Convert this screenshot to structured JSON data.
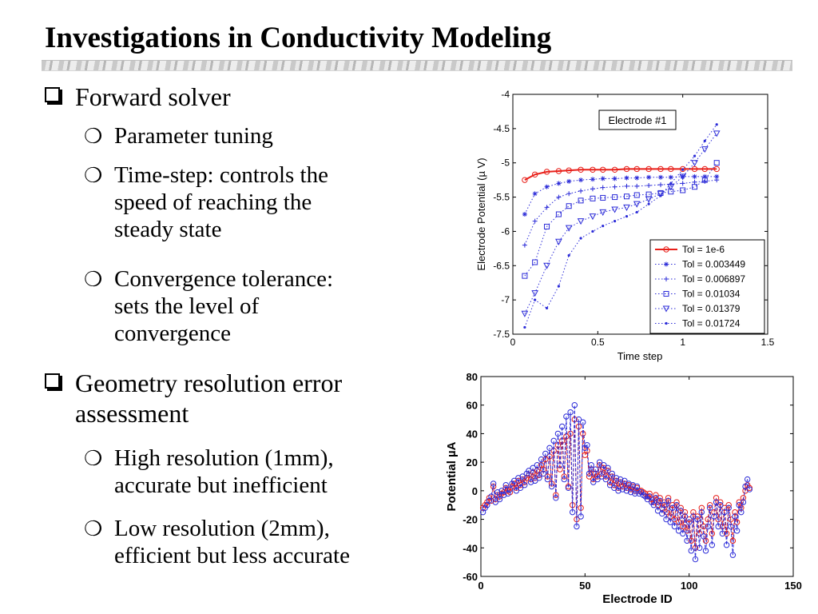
{
  "slide": {
    "title": "Investigations in Conductivity Modeling",
    "bullets": [
      {
        "text": [
          "Forward solver"
        ]
      },
      {
        "text": [
          "Parameter tuning"
        ]
      },
      {
        "text": [
          "Time-step: controls the",
          "speed of reaching the",
          "steady state"
        ]
      },
      {
        "text": [
          "Convergence tolerance:",
          "sets the level of",
          "convergence"
        ]
      },
      {
        "text": [
          "Geometry resolution error",
          "assessment"
        ]
      },
      {
        "text": [
          "High resolution (1mm),",
          "accurate but inefficient"
        ]
      },
      {
        "text": [
          "Low resolution (2mm),",
          "efficient but less accurate"
        ]
      }
    ]
  },
  "chart_data": [
    {
      "type": "line",
      "xlabel": "Time step",
      "ylabel": "Electrode Potential (µ V)",
      "xlim": [
        0,
        1.5
      ],
      "ylim": [
        -7.5,
        -4
      ],
      "xticks": [
        "0",
        "0.5",
        "1",
        "1.5"
      ],
      "yticks": [
        "-4",
        "-4.5",
        "-5",
        "-5.5",
        "-6",
        "-6.5",
        "-7",
        "-7.5"
      ],
      "annotation": "Electrode #1",
      "legend_position": "bottom-right",
      "colors": {
        "red": "#e8201a",
        "blue": "#2b2bd8"
      },
      "series": [
        {
          "name": "Tol = 1e-6",
          "marker": "circle",
          "x": [
            0.07,
            0.13,
            0.2,
            0.27,
            0.33,
            0.4,
            0.47,
            0.53,
            0.6,
            0.67,
            0.73,
            0.8,
            0.87,
            0.93,
            1.0,
            1.07,
            1.13,
            1.2
          ],
          "y": [
            -5.25,
            -5.17,
            -5.13,
            -5.12,
            -5.11,
            -5.1,
            -5.1,
            -5.1,
            -5.1,
            -5.09,
            -5.09,
            -5.09,
            -5.09,
            -5.09,
            -5.09,
            -5.09,
            -5.09,
            -5.09
          ]
        },
        {
          "name": "Tol = 0.003449",
          "marker": "star",
          "x": [
            0.07,
            0.13,
            0.2,
            0.27,
            0.33,
            0.4,
            0.47,
            0.53,
            0.6,
            0.67,
            0.73,
            0.8,
            0.87,
            0.93,
            1.0,
            1.07,
            1.13,
            1.2
          ],
          "y": [
            -5.75,
            -5.45,
            -5.35,
            -5.3,
            -5.27,
            -5.25,
            -5.24,
            -5.23,
            -5.23,
            -5.22,
            -5.22,
            -5.21,
            -5.21,
            -5.21,
            -5.2,
            -5.2,
            -5.2,
            -5.2
          ]
        },
        {
          "name": "Tol = 0.006897",
          "marker": "plus",
          "x": [
            0.07,
            0.13,
            0.2,
            0.27,
            0.33,
            0.4,
            0.47,
            0.53,
            0.6,
            0.67,
            0.73,
            0.8,
            0.87,
            0.93,
            1.0,
            1.07,
            1.13,
            1.2
          ],
          "y": [
            -6.2,
            -5.85,
            -5.65,
            -5.5,
            -5.45,
            -5.41,
            -5.38,
            -5.36,
            -5.35,
            -5.34,
            -5.34,
            -5.33,
            -5.32,
            -5.31,
            -5.3,
            -5.28,
            -5.27,
            -5.25
          ]
        },
        {
          "name": "Tol = 0.01034",
          "marker": "square",
          "x": [
            0.07,
            0.13,
            0.2,
            0.27,
            0.33,
            0.4,
            0.47,
            0.53,
            0.6,
            0.67,
            0.73,
            0.8,
            0.87,
            0.93,
            1.0,
            1.07,
            1.13,
            1.2
          ],
          "y": [
            -6.65,
            -6.45,
            -5.93,
            -5.75,
            -5.63,
            -5.55,
            -5.52,
            -5.51,
            -5.5,
            -5.49,
            -5.47,
            -5.46,
            -5.44,
            -5.42,
            -5.4,
            -5.35,
            -5.25,
            -5.0
          ]
        },
        {
          "name": "Tol = 0.01379",
          "marker": "triangle-down",
          "x": [
            0.07,
            0.13,
            0.2,
            0.27,
            0.33,
            0.4,
            0.47,
            0.53,
            0.6,
            0.67,
            0.73,
            0.8,
            0.87,
            0.93,
            1.0,
            1.07,
            1.13,
            1.2
          ],
          "y": [
            -7.2,
            -6.9,
            -6.5,
            -6.15,
            -5.95,
            -5.85,
            -5.78,
            -5.72,
            -5.68,
            -5.65,
            -5.6,
            -5.53,
            -5.45,
            -5.35,
            -5.2,
            -5.0,
            -4.8,
            -4.57
          ]
        },
        {
          "name": "Tol = 0.01724",
          "marker": "dot",
          "x": [
            0.07,
            0.13,
            0.2,
            0.27,
            0.33,
            0.4,
            0.47,
            0.53,
            0.6,
            0.67,
            0.73,
            0.8,
            0.87,
            0.93,
            1.0,
            1.07,
            1.13,
            1.2
          ],
          "y": [
            -7.4,
            -7.0,
            -7.12,
            -6.8,
            -6.35,
            -6.1,
            -6.0,
            -5.92,
            -5.85,
            -5.78,
            -5.72,
            -5.6,
            -5.48,
            -5.3,
            -5.1,
            -4.9,
            -4.68,
            -4.44
          ]
        }
      ]
    },
    {
      "type": "line",
      "xlabel": "Electrode ID",
      "ylabel": "Potential µA",
      "xlim": [
        0,
        150
      ],
      "ylim": [
        -60,
        80
      ],
      "xticks": [
        "0",
        "50",
        "100",
        "150"
      ],
      "yticks": [
        "80",
        "60",
        "40",
        "20",
        "0",
        "-20",
        "-40",
        "-60"
      ],
      "colors": {
        "red": "#e8201a",
        "blue": "#2b2bd8"
      },
      "x": [
        1,
        2,
        3,
        4,
        5,
        6,
        7,
        8,
        9,
        10,
        11,
        12,
        13,
        14,
        15,
        16,
        17,
        18,
        19,
        20,
        21,
        22,
        23,
        24,
        25,
        26,
        27,
        28,
        29,
        30,
        31,
        32,
        33,
        34,
        35,
        36,
        37,
        38,
        39,
        40,
        41,
        42,
        43,
        44,
        45,
        46,
        47,
        48,
        49,
        50,
        51,
        52,
        53,
        54,
        55,
        56,
        57,
        58,
        59,
        60,
        61,
        62,
        63,
        64,
        65,
        66,
        67,
        68,
        69,
        70,
        71,
        72,
        73,
        74,
        75,
        76,
        77,
        78,
        79,
        80,
        81,
        82,
        83,
        84,
        85,
        86,
        87,
        88,
        89,
        90,
        91,
        92,
        93,
        94,
        95,
        96,
        97,
        98,
        99,
        100,
        101,
        102,
        103,
        104,
        105,
        106,
        107,
        108,
        109,
        110,
        111,
        112,
        113,
        114,
        115,
        116,
        117,
        118,
        119,
        120,
        121,
        122,
        123,
        124,
        125,
        126,
        127,
        128,
        129
      ],
      "series": [
        {
          "values": [
            -12,
            -10,
            -8,
            -5,
            -7,
            3,
            -6,
            -3,
            -4,
            -2,
            -1,
            2,
            0,
            -1,
            3,
            5,
            2,
            7,
            4,
            8,
            6,
            9,
            11,
            8,
            13,
            9,
            14,
            11,
            18,
            15,
            22,
            10,
            24,
            5,
            28,
            -3,
            32,
            15,
            35,
            10,
            38,
            3,
            40,
            -10,
            50,
            -20,
            45,
            -12,
            40,
            25,
            28,
            10,
            15,
            8,
            12,
            10,
            18,
            12,
            16,
            10,
            14,
            6,
            10,
            4,
            7,
            2,
            6,
            3,
            5,
            2,
            4,
            1,
            3,
            0,
            2,
            0,
            0,
            -1,
            -2,
            -4,
            -2,
            -6,
            -8,
            -3,
            -10,
            -5,
            -12,
            -8,
            -15,
            -5,
            -18,
            -10,
            -20,
            -8,
            -22,
            -12,
            -25,
            -15,
            -28,
            -20,
            -35,
            -15,
            -40,
            -18,
            -30,
            -12,
            -25,
            -35,
            -20,
            -10,
            -30,
            -15,
            -5,
            -20,
            -8,
            -25,
            -12,
            -30,
            -10,
            -20,
            -35,
            -15,
            -22,
            -8,
            -12,
            -5,
            0,
            4,
            2
          ],
          "marker": "circle",
          "color": "red"
        },
        {
          "values": [
            -15,
            -12,
            -10,
            -7,
            -4,
            5,
            -8,
            -1,
            -6,
            0,
            -3,
            4,
            -2,
            1,
            5,
            7,
            0,
            9,
            2,
            10,
            4,
            12,
            14,
            6,
            16,
            7,
            18,
            9,
            22,
            12,
            26,
            8,
            30,
            3,
            35,
            -5,
            40,
            18,
            45,
            8,
            52,
            2,
            55,
            -15,
            60,
            -25,
            50,
            -18,
            48,
            30,
            32,
            12,
            18,
            6,
            15,
            8,
            20,
            10,
            18,
            8,
            16,
            4,
            12,
            2,
            9,
            0,
            8,
            1,
            7,
            0,
            5,
            -1,
            4,
            -2,
            3,
            -2,
            -1,
            -3,
            -4,
            -6,
            -4,
            -8,
            -10,
            -5,
            -14,
            -7,
            -16,
            -10,
            -20,
            -7,
            -22,
            -12,
            -25,
            -10,
            -28,
            -14,
            -30,
            -18,
            -35,
            -22,
            -42,
            -18,
            -48,
            -20,
            -40,
            -15,
            -32,
            -42,
            -25,
            -12,
            -38,
            -18,
            -8,
            -25,
            -10,
            -30,
            -15,
            -38,
            -12,
            -25,
            -45,
            -18,
            -28,
            -10,
            -15,
            -8,
            3,
            8,
            1
          ],
          "marker": "circle",
          "color": "blue"
        }
      ]
    }
  ]
}
